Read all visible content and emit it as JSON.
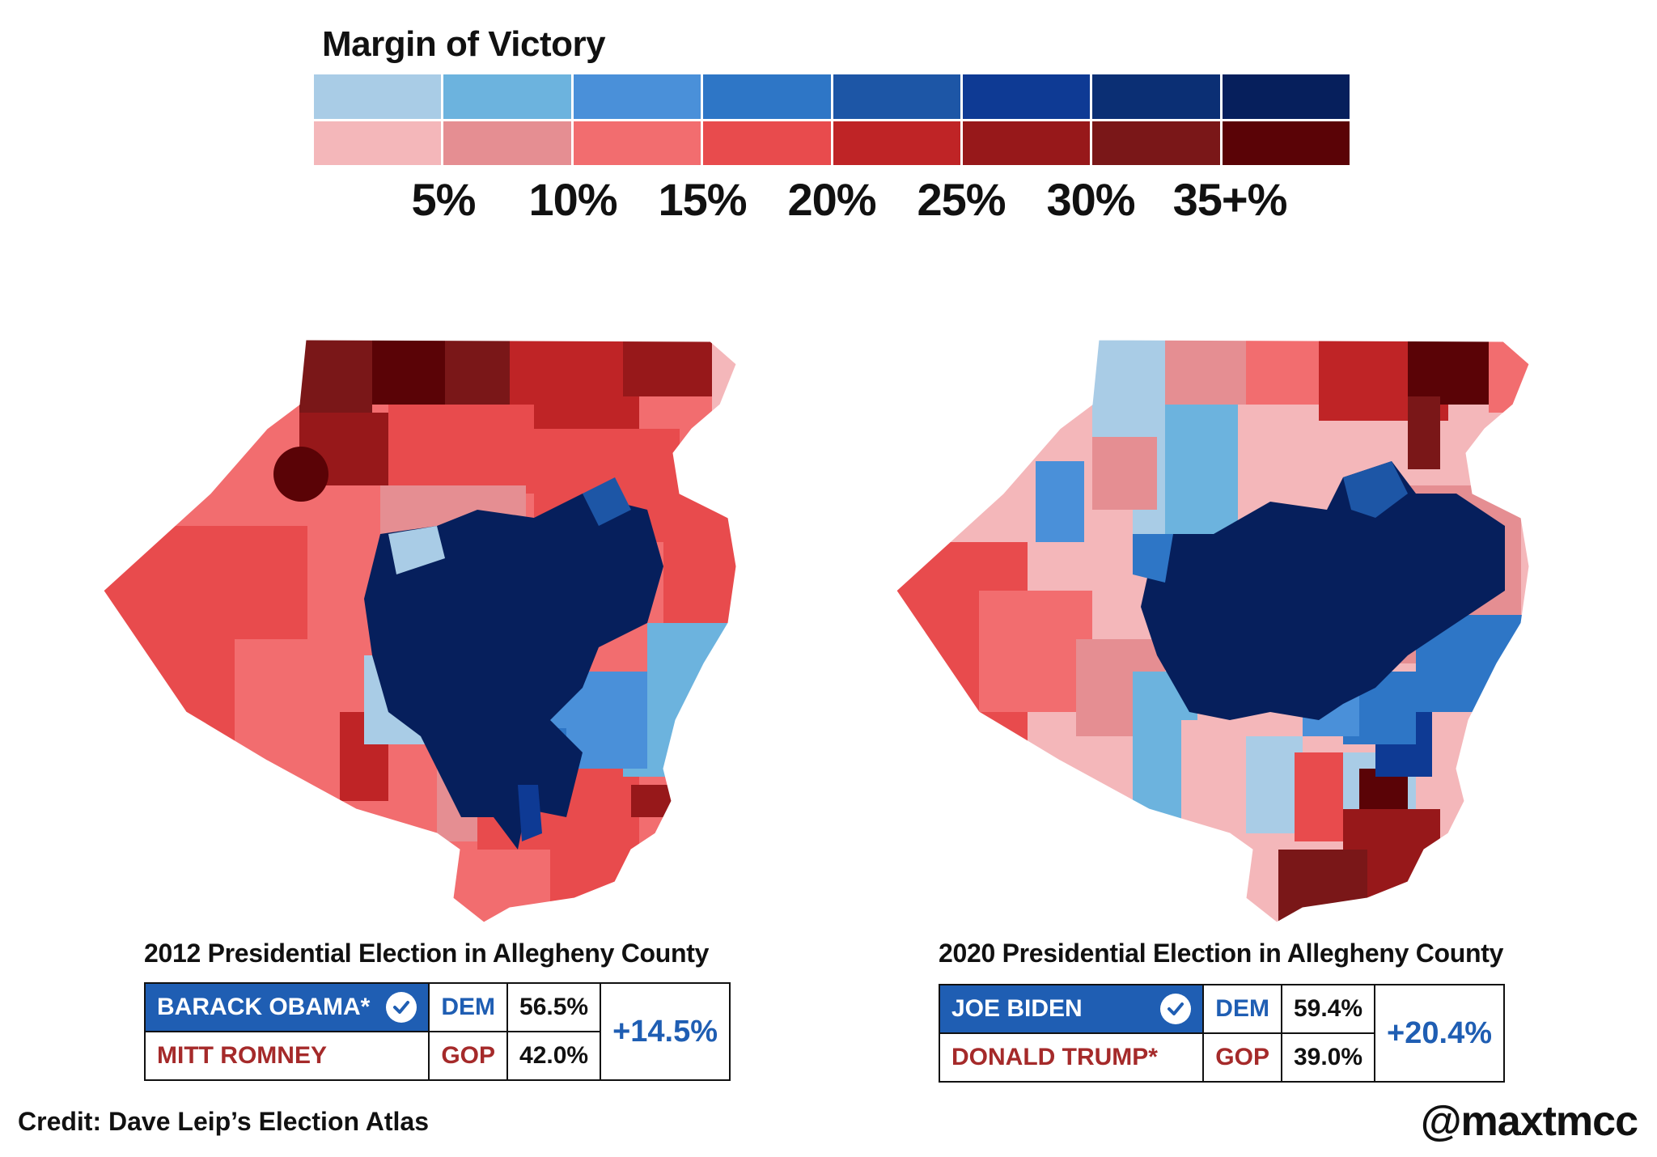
{
  "legend": {
    "title": "Margin of Victory",
    "dem_colors": [
      "#a9cce6",
      "#6cb3de",
      "#4a90d9",
      "#2e76c6",
      "#1d56a6",
      "#0e3a94",
      "#0b2f74",
      "#061f5c"
    ],
    "gop_colors": [
      "#f4b7ba",
      "#e58e92",
      "#f26d6f",
      "#e84b4d",
      "#bf2426",
      "#97181a",
      "#7a1718",
      "#5a0306"
    ],
    "ticks": [
      "5%",
      "10%",
      "15%",
      "20%",
      "25%",
      "30%",
      "35+%"
    ]
  },
  "elections": [
    {
      "title": "2012 Presidential Election in Allegheny County",
      "rows": [
        {
          "candidate": "BARACK OBAMA*",
          "party": "DEM",
          "share": "56.5%",
          "winner": true
        },
        {
          "candidate": "MITT ROMNEY",
          "party": "GOP",
          "share": "42.0%",
          "winner": false
        }
      ],
      "margin": "+14.5%"
    },
    {
      "title": "2020 Presidential Election in Allegheny County",
      "rows": [
        {
          "candidate": "JOE BIDEN",
          "party": "DEM",
          "share": "59.4%",
          "winner": true
        },
        {
          "candidate": "DONALD TRUMP*",
          "party": "GOP",
          "share": "39.0%",
          "winner": false
        }
      ],
      "margin": "+20.4%"
    }
  ],
  "credit": "Credit: Dave Leip’s Election Atlas",
  "handle": "@maxtmcc"
}
